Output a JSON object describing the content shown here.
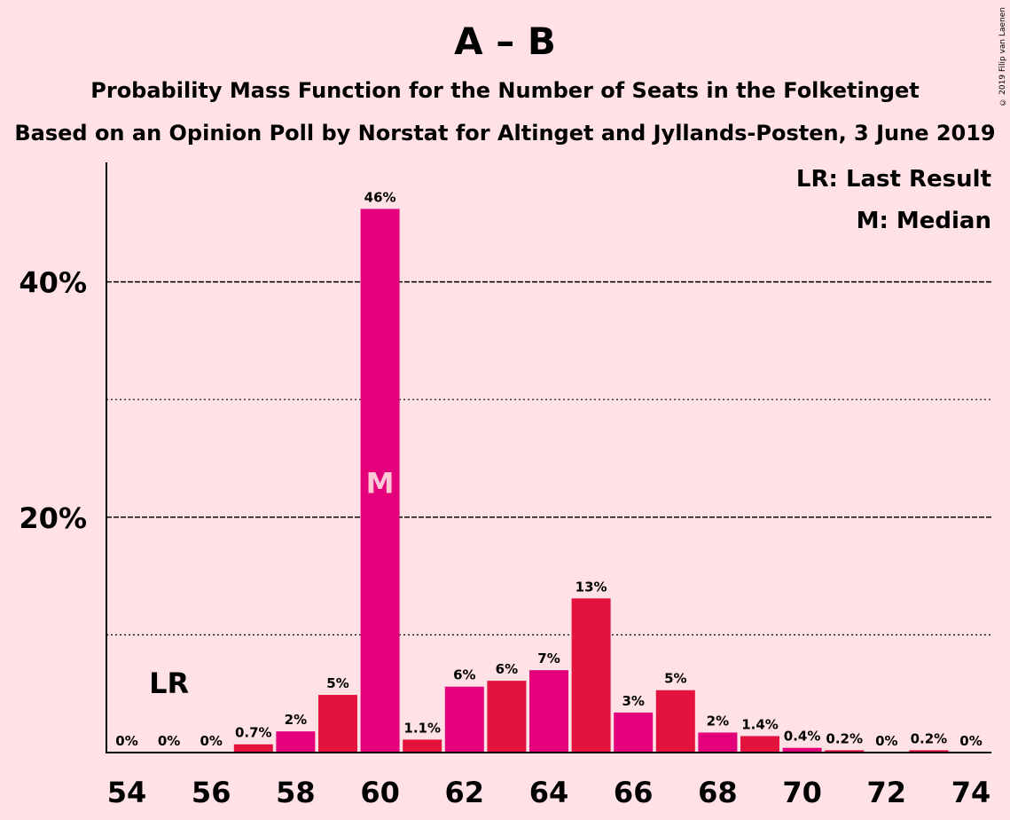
{
  "title": "A – B",
  "subtitle1": "Probability Mass Function for the Number of Seats in the Folketinget",
  "subtitle2": "Based on an Opinion Poll by Norstat for Altinget and Jyllands-Posten, 3 June 2019",
  "copyright": "© 2019 Filip van Laenen",
  "legend": {
    "lr": "LR: Last Result",
    "m": "M: Median"
  },
  "markers": {
    "lr_label": "LR",
    "lr_seat": 55,
    "median_label": "M",
    "median_seat": 60
  },
  "colors": {
    "background": "#FFE1E6",
    "bar_a": "#E3133D",
    "bar_b": "#E3007A",
    "median_text": "#FFC8D5"
  },
  "chart_data": {
    "type": "bar",
    "x": [
      54,
      55,
      56,
      57,
      58,
      59,
      60,
      61,
      62,
      63,
      64,
      65,
      66,
      67,
      68,
      69,
      70,
      71,
      72,
      73,
      74
    ],
    "values": [
      0,
      0,
      0,
      0.7,
      1.8,
      4.9,
      46.2,
      1.1,
      5.6,
      6.1,
      7.0,
      13.1,
      3.4,
      5.3,
      1.7,
      1.4,
      0.4,
      0.2,
      0,
      0.2,
      0
    ],
    "value_labels": [
      "0%",
      "0%",
      "0%",
      "0.7%",
      "2%",
      "5%",
      "46%",
      "1.1%",
      "6%",
      "6%",
      "7%",
      "13%",
      "3%",
      "5%",
      "2%",
      "1.4%",
      "0.4%",
      "0.2%",
      "0%",
      "0.2%",
      "0%"
    ],
    "y_ticks": [
      {
        "value": 20,
        "label": "20%"
      },
      {
        "value": 40,
        "label": "40%"
      }
    ],
    "minor_gridlines": [
      10,
      30
    ],
    "x_tick_labels": [
      "54",
      "56",
      "58",
      "60",
      "62",
      "64",
      "66",
      "68",
      "70",
      "72",
      "74"
    ],
    "ylim": [
      0,
      50
    ]
  }
}
